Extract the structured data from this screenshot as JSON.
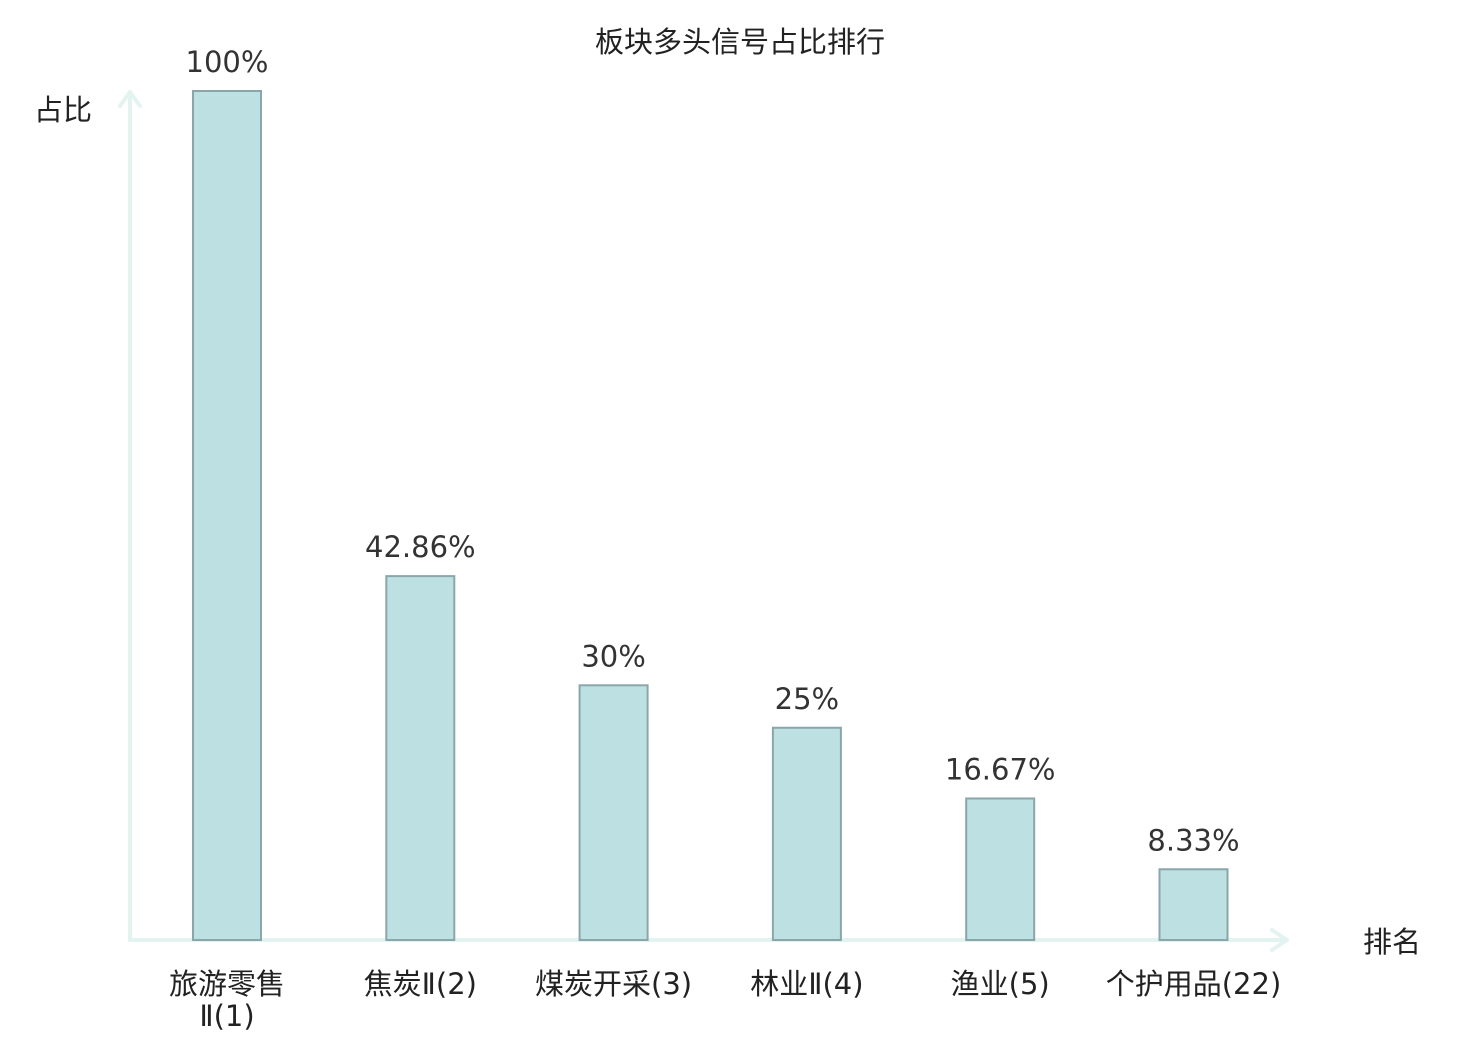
{
  "chart_data": {
    "type": "bar",
    "title": "板块多头信号占比排行",
    "ylabel": "占比",
    "xlabel": "排名",
    "categories": [
      {
        "lines": [
          "旅游零售",
          "Ⅱ(1)"
        ],
        "highlight": false
      },
      {
        "lines": [
          "焦炭Ⅱ(2)"
        ],
        "highlight": false
      },
      {
        "lines": [
          "煤炭开采(3)"
        ],
        "highlight": false
      },
      {
        "lines": [
          "林业Ⅱ(4)"
        ],
        "highlight": false
      },
      {
        "lines": [
          "渔业(5)"
        ],
        "highlight": false
      },
      {
        "lines": [
          "个护用品(22)"
        ],
        "highlight": true
      }
    ],
    "values": [
      100,
      42.86,
      30,
      25,
      16.67,
      8.33
    ],
    "value_labels": [
      "100%",
      "42.86%",
      "30%",
      "25%",
      "16.67%",
      "8.33%"
    ],
    "ylim": [
      0,
      100
    ],
    "grid": false,
    "legend": "none"
  },
  "colors": {
    "bar_fill": "#bde0e3",
    "bar_stroke": "#8aa6aa",
    "axis": "#e3f3f0",
    "text": "#222222",
    "highlight_text": "#e8140c"
  }
}
